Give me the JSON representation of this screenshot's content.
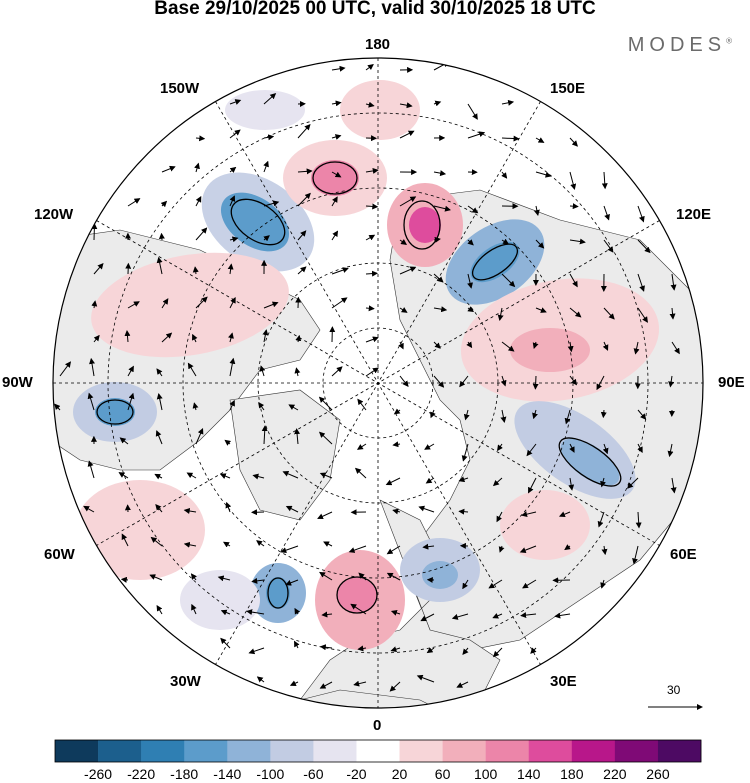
{
  "title": "Base 29/10/2025 00 UTC, valid 30/10/2025 18 UTC",
  "brand": "MODES",
  "brand_mark": "®",
  "longitude_labels": {
    "top": "180",
    "bottom": "0",
    "left": "90W",
    "right": "90E",
    "nw_upper": "150W",
    "nw_lower": "120W",
    "ne_upper": "150E",
    "ne_lower": "120E",
    "sw_upper": "60W",
    "sw_lower": "30W",
    "se_upper": "60E",
    "se_lower": "30E"
  },
  "vector_scale": {
    "label": "30"
  },
  "colorbar": {
    "levels": [
      "-260",
      "-220",
      "-180",
      "-140",
      "-100",
      "-60",
      "-20",
      "20",
      "60",
      "100",
      "140",
      "180",
      "220",
      "260"
    ],
    "colors": [
      "#0e3a5c",
      "#1c5f8d",
      "#2f7fb3",
      "#5c9ccb",
      "#8fb3d8",
      "#c2cce3",
      "#e6e4f0",
      "#ffffff",
      "#f7d5d8",
      "#f2afbb",
      "#ec85a9",
      "#de4c9d",
      "#b8178a",
      "#7f0a76",
      "#4d0a63"
    ]
  },
  "colors": {
    "land": "#ebebeb",
    "ocean": "#ffffff",
    "grid": "#000000"
  }
}
